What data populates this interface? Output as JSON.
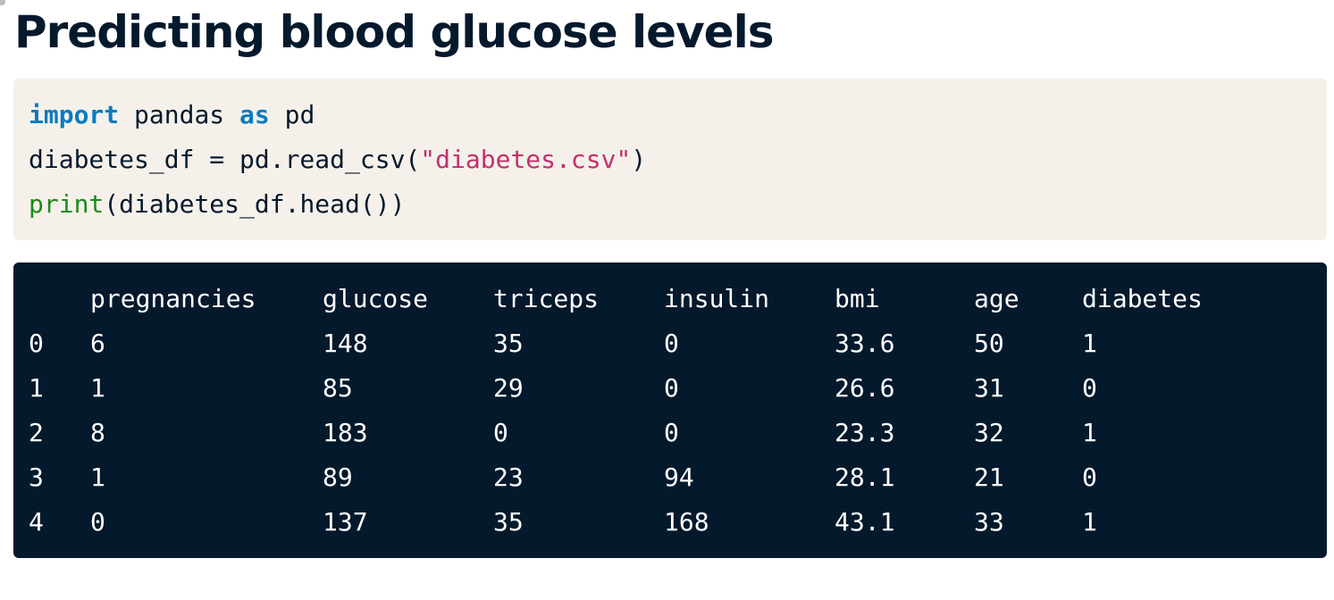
{
  "page": {
    "title": "Predicting blood glucose levels"
  },
  "code": {
    "lines": [
      [
        {
          "text": "import",
          "kind": "kw"
        },
        {
          "text": " pandas ",
          "kind": "plain"
        },
        {
          "text": "as",
          "kind": "kw"
        },
        {
          "text": " pd",
          "kind": "plain"
        }
      ],
      [
        {
          "text": "diabetes_df = pd.read_csv(",
          "kind": "plain"
        },
        {
          "text": "\"diabetes.csv\"",
          "kind": "str"
        },
        {
          "text": ")",
          "kind": "plain"
        }
      ],
      [
        {
          "text": "print",
          "kind": "fn"
        },
        {
          "text": "(diabetes_df.head())",
          "kind": "plain"
        }
      ]
    ]
  },
  "output": {
    "columns": [
      "",
      "pregnancies",
      "glucose",
      "triceps",
      "insulin",
      "bmi",
      "age",
      "diabetes"
    ],
    "rows": [
      [
        "0",
        "6",
        "148",
        "35",
        "0",
        "33.6",
        "50",
        "1"
      ],
      [
        "1",
        "1",
        "85",
        "29",
        "0",
        "26.6",
        "31",
        "0"
      ],
      [
        "2",
        "8",
        "183",
        "0",
        "0",
        "23.3",
        "32",
        "1"
      ],
      [
        "3",
        "1",
        "89",
        "23",
        "94",
        "28.1",
        "21",
        "0"
      ],
      [
        "4",
        "0",
        "137",
        "35",
        "168",
        "43.1",
        "33",
        "1"
      ]
    ]
  },
  "colors": {
    "title": "#05192d",
    "code_bg": "#f5f1ea",
    "output_bg": "#05192d",
    "keyword": "#0b7bbf",
    "string": "#c2306e",
    "builtin": "#1a8a1a"
  }
}
